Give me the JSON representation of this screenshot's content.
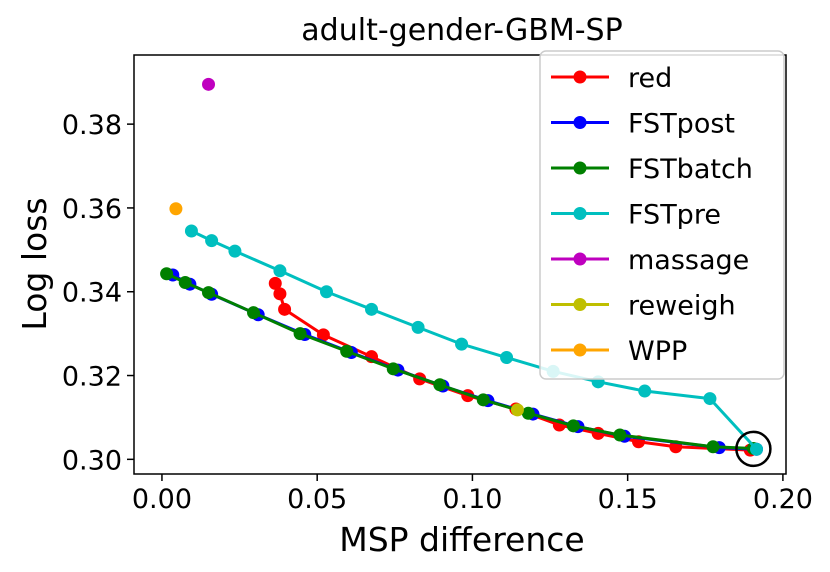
{
  "chart_data": {
    "type": "line",
    "title": "adult-gender-GBM-SP",
    "xlabel": "MSP difference",
    "ylabel": "Log loss",
    "xlim": [
      -0.009,
      0.201
    ],
    "ylim": [
      0.2965,
      0.3965
    ],
    "xticks": [
      0.0,
      0.05,
      0.1,
      0.15,
      0.2
    ],
    "xtick_labels": [
      "0.00",
      "0.05",
      "0.10",
      "0.15",
      "0.20"
    ],
    "yticks": [
      0.3,
      0.32,
      0.34,
      0.36,
      0.38
    ],
    "ytick_labels": [
      "0.30",
      "0.32",
      "0.34",
      "0.36",
      "0.38"
    ],
    "legend_position": "top-right",
    "series": [
      {
        "name": "red",
        "color": "#ff0000",
        "mode": "line",
        "x": [
          0.0365,
          0.038,
          0.0395,
          0.052,
          0.0675,
          0.083,
          0.0985,
          0.114,
          0.128,
          0.1405,
          0.1535,
          0.1655,
          0.1895
        ],
        "y": [
          0.342,
          0.3395,
          0.3358,
          0.3297,
          0.3245,
          0.3192,
          0.3152,
          0.312,
          0.3082,
          0.3062,
          0.3042,
          0.303,
          0.3022
        ]
      },
      {
        "name": "FSTpost",
        "color": "#0000ff",
        "mode": "line",
        "x": [
          0.0035,
          0.009,
          0.016,
          0.031,
          0.046,
          0.061,
          0.076,
          0.0905,
          0.105,
          0.1195,
          0.134,
          0.149,
          0.1795,
          0.1915
        ],
        "y": [
          0.344,
          0.3418,
          0.3394,
          0.3345,
          0.3298,
          0.3255,
          0.3213,
          0.3175,
          0.314,
          0.3108,
          0.3078,
          0.3055,
          0.3028,
          0.3024
        ]
      },
      {
        "name": "FSTbatch",
        "color": "#008000",
        "mode": "line",
        "x": [
          0.0015,
          0.0075,
          0.015,
          0.0295,
          0.0445,
          0.0595,
          0.0745,
          0.0895,
          0.1035,
          0.118,
          0.1325,
          0.1475,
          0.1775,
          0.1905
        ],
        "y": [
          0.3443,
          0.3422,
          0.3398,
          0.335,
          0.33,
          0.3258,
          0.3216,
          0.3178,
          0.3142,
          0.311,
          0.308,
          0.3058,
          0.303,
          0.3026
        ]
      },
      {
        "name": "FSTpre",
        "color": "#00bfbf",
        "mode": "line",
        "x": [
          0.0095,
          0.016,
          0.0235,
          0.038,
          0.053,
          0.0675,
          0.0825,
          0.0965,
          0.111,
          0.126,
          0.1405,
          0.1555,
          0.1765,
          0.1915
        ],
        "y": [
          0.3545,
          0.3522,
          0.3497,
          0.345,
          0.34,
          0.3358,
          0.3315,
          0.3275,
          0.3243,
          0.321,
          0.3185,
          0.3163,
          0.3145,
          0.3024
        ]
      },
      {
        "name": "massage",
        "color": "#bf00bf",
        "mode": "point",
        "x": [
          0.015
        ],
        "y": [
          0.3895
        ]
      },
      {
        "name": "reweigh",
        "color": "#bfbf00",
        "mode": "point",
        "x": [
          0.1145
        ],
        "y": [
          0.3118
        ]
      },
      {
        "name": "WPP",
        "color": "#ffa500",
        "mode": "point",
        "x": [
          0.0045
        ],
        "y": [
          0.3598
        ]
      }
    ],
    "annotations": [
      {
        "type": "circle",
        "x": 0.1905,
        "y": 0.3025,
        "description": "highlighted endpoint"
      }
    ]
  }
}
